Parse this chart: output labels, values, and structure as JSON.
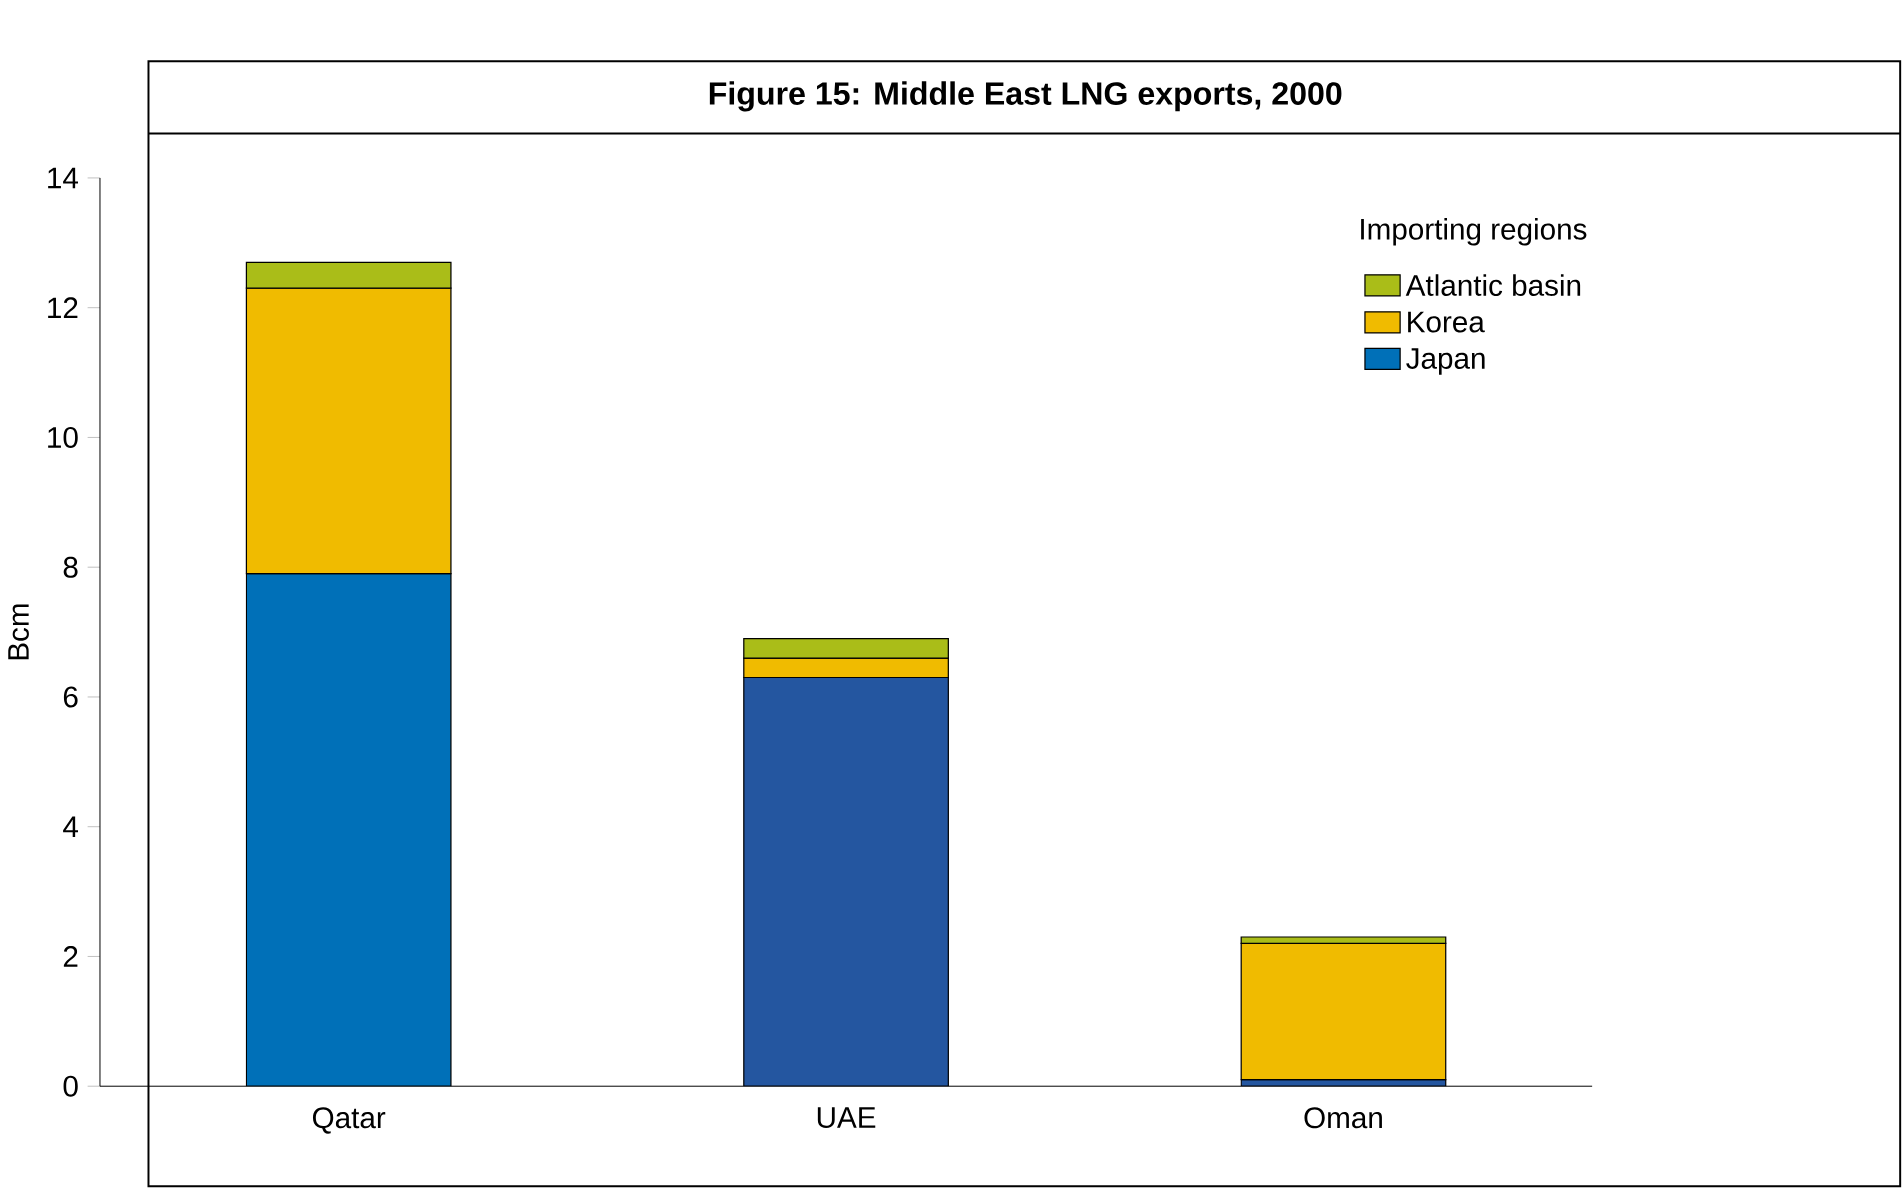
{
  "chart_data": {
    "type": "bar",
    "stacked": true,
    "title": "Figure 15: Middle East LNG exports, 2000",
    "ylabel": "Bcm",
    "legend_title": "Importing regions",
    "legend": "top right",
    "categories": [
      "Qatar",
      "UAE",
      "Oman"
    ],
    "series": [
      {
        "name": "Japan",
        "color": "#0070b8",
        "colors": [
          "#0070b8",
          "#2456a0",
          "#2456a0"
        ],
        "values": [
          7.9,
          6.3,
          0.1
        ]
      },
      {
        "name": "Korea",
        "color": "#f0bb00",
        "values": [
          4.4,
          0.3,
          2.1
        ]
      },
      {
        "name": "Atlantic basin",
        "color": "#aabd18",
        "values": [
          0.4,
          0.3,
          0.1
        ]
      }
    ],
    "ylim": [
      0,
      14
    ],
    "yticks": [
      0,
      2,
      4,
      6,
      8,
      10,
      12,
      14
    ]
  }
}
